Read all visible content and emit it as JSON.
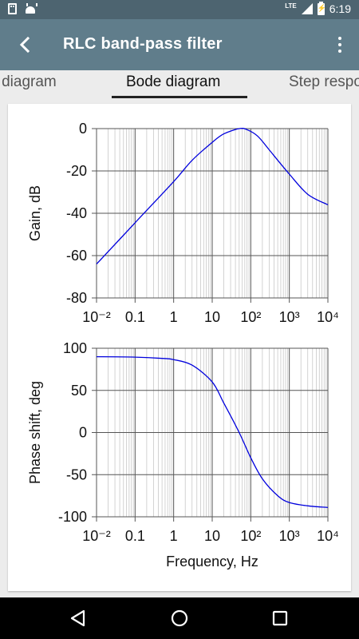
{
  "status_bar": {
    "time": "6:19",
    "network": "LTE"
  },
  "app_bar": {
    "title": "RLC band-pass filter"
  },
  "tabs": [
    {
      "label": "Circuit diagram"
    },
    {
      "label": "Bode diagram",
      "active": true
    },
    {
      "label": "Step response"
    }
  ],
  "chart_data": [
    {
      "type": "line",
      "xscale": "log",
      "xlim": [
        0.01,
        10000
      ],
      "ylim": [
        -80,
        0
      ],
      "xticks": [
        "10⁻²",
        "0.1",
        "1",
        "10",
        "10²",
        "10³",
        "10⁴"
      ],
      "yticks": [
        "0",
        "-20",
        "-40",
        "-60",
        "-80"
      ],
      "ylabel": "Gain, dB",
      "grid": true,
      "color": "#0000dd",
      "points": [
        [
          0.01,
          -64
        ],
        [
          0.1,
          -44.5
        ],
        [
          1,
          -25
        ],
        [
          3,
          -15
        ],
        [
          10,
          -6.5
        ],
        [
          20,
          -2.5
        ],
        [
          50,
          0
        ],
        [
          80,
          -0.5
        ],
        [
          150,
          -3.5
        ],
        [
          300,
          -10
        ],
        [
          1000,
          -21.5
        ],
        [
          3000,
          -31
        ],
        [
          10000,
          -36
        ]
      ]
    },
    {
      "type": "line",
      "xscale": "log",
      "xlim": [
        0.01,
        10000
      ],
      "ylim": [
        -100,
        100
      ],
      "xticks": [
        "10⁻²",
        "0.1",
        "1",
        "10",
        "10²",
        "10³",
        "10⁴"
      ],
      "yticks": [
        "100",
        "50",
        "0",
        "-50",
        "-100"
      ],
      "xlabel": "Frequency, Hz",
      "ylabel": "Phase shift, deg",
      "grid": true,
      "color": "#0000dd",
      "points": [
        [
          0.01,
          90
        ],
        [
          0.1,
          89.5
        ],
        [
          0.5,
          88
        ],
        [
          1,
          86.5
        ],
        [
          3,
          80
        ],
        [
          10,
          60
        ],
        [
          20,
          35
        ],
        [
          50,
          0
        ],
        [
          100,
          -30
        ],
        [
          200,
          -55
        ],
        [
          500,
          -75
        ],
        [
          1000,
          -83
        ],
        [
          3000,
          -87
        ],
        [
          10000,
          -89
        ]
      ]
    }
  ]
}
